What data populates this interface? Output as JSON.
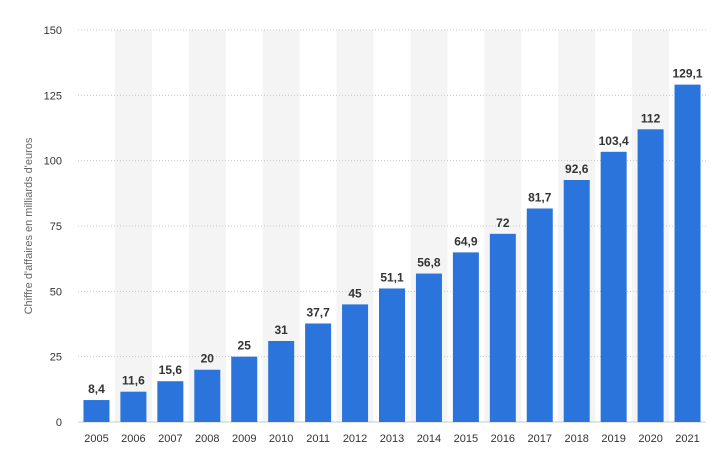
{
  "chart_data": {
    "type": "bar",
    "title": "",
    "xlabel": "",
    "ylabel": "Chiffre d'affaires en milliards d'euros",
    "ylim": [
      0,
      150
    ],
    "yticks": [
      "0",
      "25",
      "50",
      "75",
      "100",
      "125",
      "150"
    ],
    "ytick_values": [
      0,
      25,
      50,
      75,
      100,
      125,
      150
    ],
    "grid": "horizontal dotted",
    "alternating_column_bands": true,
    "categories": [
      "2005",
      "2006",
      "2007",
      "2008",
      "2009",
      "2010",
      "2011",
      "2012",
      "2013",
      "2014",
      "2015",
      "2016",
      "2017",
      "2018",
      "2019",
      "2020",
      "2021"
    ],
    "values": [
      8.4,
      11.6,
      15.6,
      20,
      25,
      31,
      37.7,
      45,
      51.1,
      56.8,
      64.9,
      72,
      81.7,
      92.6,
      103.4,
      112,
      129.1
    ],
    "data_labels": [
      "8,4",
      "11,6",
      "15,6",
      "20",
      "25",
      "31",
      "37,7",
      "45",
      "51,1",
      "56,8",
      "64,9",
      "72",
      "81,7",
      "92,6",
      "103,4",
      "112",
      "129,1"
    ],
    "colors": {
      "bar": "#2a74db",
      "band": "#f4f4f4",
      "grid": "#c8c8c8",
      "text": "#333333",
      "axis_title": "#666666"
    }
  }
}
